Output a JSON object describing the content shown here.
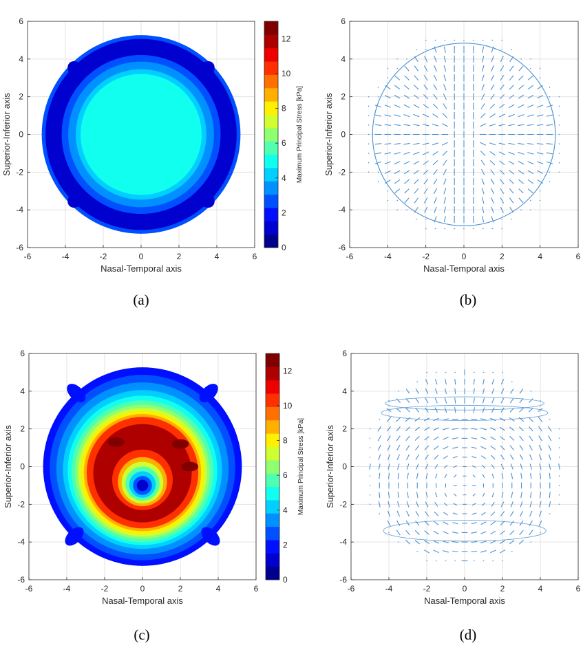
{
  "colors": {
    "jet": [
      "#00008F",
      "#0000CF",
      "#000FFF",
      "#0050FF",
      "#0090FF",
      "#00CFFF",
      "#10FFEF",
      "#50FFAF",
      "#8FFF70",
      "#CFFF30",
      "#FFEF00",
      "#FFAF00",
      "#FF7000",
      "#FF3000",
      "#EF0000",
      "#AF0000",
      "#800000"
    ],
    "quiver": "#4a8fd0",
    "grid": "#e3e3e3"
  },
  "chart_data": [
    {
      "id": "a",
      "type": "contour",
      "caption": "(a)",
      "xlabel": "Nasal-Temporal axis",
      "ylabel": "Superior-Inferior axis",
      "xlim": [
        -6,
        6
      ],
      "ylim": [
        -6,
        6
      ],
      "xticks": [
        "-6",
        "-4",
        "-2",
        "0",
        "2",
        "4",
        "6"
      ],
      "yticks": [
        "-6",
        "-4",
        "-2",
        "0",
        "2",
        "4",
        "6"
      ],
      "grid": true,
      "field": "uniform center ~5 kPa decreasing to ~1 kPa near rim",
      "rings": [
        {
          "r": 5.25,
          "value": 2.5,
          "cx": 0,
          "cy": 0
        },
        {
          "r": 5.05,
          "value": 1.5,
          "cx": 0,
          "cy": 0
        },
        {
          "r": 4.75,
          "value": 0.8,
          "cx": 0,
          "cy": 0
        },
        {
          "r": 4.45,
          "value": 1.5,
          "cx": 0,
          "cy": 0
        },
        {
          "r": 4.2,
          "value": 2.5,
          "cx": 0,
          "cy": 0
        },
        {
          "r": 3.85,
          "value": 3.2,
          "cx": 0,
          "cy": 0
        },
        {
          "r": 3.45,
          "value": 4.0,
          "cx": 0,
          "cy": 0
        },
        {
          "r": 3.2,
          "value": 5.0,
          "cx": 0,
          "cy": 0
        }
      ],
      "colorbar": {
        "label": "Maximum Principal Stress [kPa]",
        "range": [
          0,
          13
        ],
        "ticks": [
          "0",
          "2",
          "4",
          "6",
          "8",
          "10",
          "12"
        ]
      }
    },
    {
      "id": "b",
      "type": "quiver",
      "caption": "(b)",
      "xlabel": "Nasal-Temporal axis",
      "ylabel": "Superior-Inferior axis",
      "xlim": [
        -6,
        6
      ],
      "ylim": [
        -6,
        6
      ],
      "xticks": [
        "-6",
        "-4",
        "-2",
        "0",
        "2",
        "4",
        "6"
      ],
      "yticks": [
        "-6",
        "-4",
        "-2",
        "0",
        "2",
        "4",
        "6"
      ],
      "grid": true,
      "field": "principal stress directions, radial inside circle of radius ~4.8, vertical near center"
    },
    {
      "id": "c",
      "type": "contour",
      "caption": "(c)",
      "xlabel": "Nasal-Temporal axis",
      "ylabel": "Superior-Inferior axis",
      "xlim": [
        -6,
        6
      ],
      "ylim": [
        -6,
        6
      ],
      "xticks": [
        "-6",
        "-4",
        "-2",
        "0",
        "2",
        "4",
        "6"
      ],
      "yticks": [
        "-6",
        "-4",
        "-2",
        "0",
        "2",
        "4",
        "6"
      ],
      "grid": true,
      "field": "annular ring of high stress ~11-12 kPa centered near (0,-0.2) with low-stress core ~1 kPa at (0,-1)",
      "rings": [
        {
          "r": 5.25,
          "value": 2.0,
          "cx": 0,
          "cy": 0
        },
        {
          "r": 4.9,
          "value": 2.7,
          "cx": 0,
          "cy": -0.05
        },
        {
          "r": 4.55,
          "value": 3.3,
          "cx": 0,
          "cy": -0.1
        },
        {
          "r": 4.2,
          "value": 4.0,
          "cx": 0,
          "cy": -0.15
        },
        {
          "r": 3.95,
          "value": 4.7,
          "cx": 0,
          "cy": -0.2
        },
        {
          "r": 3.75,
          "value": 5.5,
          "cx": 0,
          "cy": -0.25
        },
        {
          "r": 3.55,
          "value": 6.3,
          "cx": 0,
          "cy": -0.28
        },
        {
          "r": 3.4,
          "value": 7.0,
          "cx": 0,
          "cy": -0.3
        },
        {
          "r": 3.25,
          "value": 8.0,
          "cx": 0,
          "cy": -0.32
        },
        {
          "r": 3.1,
          "value": 9.0,
          "cx": 0,
          "cy": -0.32
        },
        {
          "r": 2.95,
          "value": 10.0,
          "cx": 0,
          "cy": -0.32
        },
        {
          "r": 2.6,
          "value": 11.5,
          "cx": 0,
          "cy": -0.35
        },
        {
          "r": 1.6,
          "value": 10.0,
          "cx": 0,
          "cy": -0.7
        },
        {
          "r": 1.3,
          "value": 8.5,
          "cx": 0,
          "cy": -0.8
        },
        {
          "r": 1.1,
          "value": 7.0,
          "cx": 0,
          "cy": -0.85
        },
        {
          "r": 0.9,
          "value": 5.5,
          "cx": 0,
          "cy": -0.9
        },
        {
          "r": 0.7,
          "value": 4.0,
          "cx": 0,
          "cy": -0.95
        },
        {
          "r": 0.5,
          "value": 2.5,
          "cx": 0,
          "cy": -1.0
        },
        {
          "r": 0.3,
          "value": 1.2,
          "cx": 0,
          "cy": -1.0
        }
      ],
      "colorbar": {
        "label": "Maximum Principal Stress [kPa]",
        "range": [
          0,
          13
        ],
        "ticks": [
          "0",
          "2",
          "4",
          "6",
          "8",
          "10",
          "12"
        ]
      }
    },
    {
      "id": "d",
      "type": "quiver",
      "caption": "(d)",
      "xlabel": "Nasal-Temporal axis",
      "ylabel": "Superior-Inferior axis",
      "xlim": [
        -6,
        6
      ],
      "ylim": [
        -6,
        6
      ],
      "xticks": [
        "-6",
        "-4",
        "-2",
        "0",
        "2",
        "4",
        "6"
      ],
      "yticks": [
        "-6",
        "-4",
        "-2",
        "0",
        "2",
        "4",
        "6"
      ],
      "grid": true,
      "field": "principal stress directions, circumferential around (0,-1), radial near rim"
    }
  ]
}
